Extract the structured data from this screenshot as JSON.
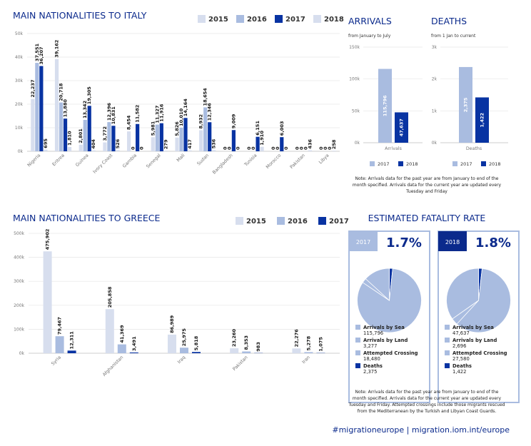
{
  "colors": {
    "y2015": "#d7deee",
    "y2016": "#a9bce0",
    "y2017": "#0833a2",
    "y2018": "#d7deee",
    "title": "#0b2a8c"
  },
  "footer": "#migrationeurope | migration.iom.int/europe",
  "chart_data": [
    {
      "id": "italy",
      "type": "bar",
      "title": "MAIN NATIONALITIES TO ITALY",
      "legend": [
        "2015",
        "2016",
        "2017",
        "2018"
      ],
      "ylim": [
        0,
        50000
      ],
      "yticks": [
        "0k",
        "10k",
        "20k",
        "30k",
        "40k",
        "50k"
      ],
      "categories": [
        "Nigeria",
        "Eritrea",
        "Guinea",
        "Ivory Coast",
        "Gambia",
        "Senegal",
        "Mali",
        "Sudan",
        "Bangladesh",
        "Tunisia",
        "Morocco",
        "Pakistan",
        "Libya"
      ],
      "series": [
        {
          "name": "2015",
          "values": [
            22237,
            39162,
            2801,
            3772,
            8454,
            5981,
            5826,
            8932,
            0,
            0,
            0,
            0,
            0
          ],
          "labels": [
            "22,237",
            "39,162",
            "2,801",
            "3,772",
            "8,454",
            "5,981",
            "5,826",
            "8,932",
            "0",
            "0",
            "0",
            "0",
            "0"
          ]
        },
        {
          "name": "2016",
          "values": [
            37551,
            20718,
            13342,
            12396,
            0,
            11327,
            10010,
            18654,
            0,
            0,
            0,
            0,
            0
          ],
          "labels": [
            "37,551",
            "20,718",
            "13,342",
            "12,396",
            "0",
            "11,327",
            "10,010",
            "18,654",
            "0",
            "0",
            "0",
            "0",
            "0"
          ]
        },
        {
          "name": "2017",
          "values": [
            36207,
            13880,
            19305,
            10831,
            11582,
            11916,
            14164,
            12346,
            9009,
            6151,
            6003,
            0,
            0
          ],
          "labels": [
            "36,207",
            "13,880",
            "19,305",
            "10,831",
            "11,582",
            "11,916",
            "14,164",
            "12,346",
            "9,009",
            "6,151",
            "6,003",
            "0",
            "0"
          ]
        },
        {
          "name": "2018",
          "values": [
            695,
            1810,
            404,
            526,
            0,
            279,
            417,
            536,
            0,
            1910,
            0,
            436,
            258
          ],
          "labels": [
            "695",
            "1,810",
            "404",
            "526",
            "0",
            "279",
            "417",
            "536",
            "0",
            "1,910",
            "0",
            "436",
            "258"
          ]
        }
      ]
    },
    {
      "id": "arrivals",
      "type": "bar",
      "title": "ARRIVALS",
      "subtitle": "from January to July",
      "ylim": [
        0,
        150000
      ],
      "yticks": [
        "0k",
        "50k",
        "100k",
        "150k"
      ],
      "categories": [
        "Arrivals"
      ],
      "legend": [
        "2017",
        "2018"
      ],
      "series": [
        {
          "name": "2017",
          "values": [
            115796
          ],
          "labels": [
            "115,796"
          ]
        },
        {
          "name": "2018",
          "values": [
            47637
          ],
          "labels": [
            "47,637"
          ]
        }
      ]
    },
    {
      "id": "deaths",
      "type": "bar",
      "title": "DEATHS",
      "subtitle": "from 1 Jan to current",
      "ylim": [
        0,
        3000
      ],
      "yticks": [
        "0k",
        "1k",
        "2k",
        "3k"
      ],
      "categories": [
        "Deaths"
      ],
      "legend": [
        "2017",
        "2018"
      ],
      "series": [
        {
          "name": "2017",
          "values": [
            2375
          ],
          "labels": [
            "2,375"
          ]
        },
        {
          "name": "2018",
          "values": [
            1422
          ],
          "labels": [
            "1,422"
          ]
        }
      ]
    },
    {
      "id": "greece",
      "type": "bar",
      "title": "MAIN NATIONALITIES TO GREECE",
      "legend": [
        "2015",
        "2016",
        "2017"
      ],
      "ylim": [
        0,
        560000
      ],
      "yticks": [
        "0k",
        "100k",
        "200k",
        "300k",
        "400k",
        "500k"
      ],
      "categories": [
        "Syria",
        "Afghanistan",
        "Iraq",
        "Pakistan",
        "Iran"
      ],
      "series": [
        {
          "name": "2015",
          "values": [
            475902,
            205858,
            86989,
            23260,
            22276
          ],
          "labels": [
            "475,902",
            "205,858",
            "86,989",
            "23,260",
            "22,276"
          ]
        },
        {
          "name": "2016",
          "values": [
            79467,
            41369,
            25975,
            8353,
            5278
          ],
          "labels": [
            "79,467",
            "41,369",
            "25,975",
            "8,353",
            "5,278"
          ]
        },
        {
          "name": "2017",
          "values": [
            12311,
            3491,
            5818,
            983,
            1075
          ],
          "labels": [
            "12,311",
            "3,491",
            "5,818",
            "983",
            "1,075"
          ]
        }
      ]
    },
    {
      "id": "fatality-2017",
      "type": "pie",
      "year": "2017",
      "rate": "1.7%",
      "slices": [
        {
          "name": "Arrivals by Sea",
          "value": 115796,
          "label": "115,796",
          "color": "#a9bce0"
        },
        {
          "name": "Arrivals by Land",
          "value": 3277,
          "label": "3,277",
          "color": "#a9bce0"
        },
        {
          "name": "Attempted Crossing",
          "value": 18480,
          "label": "18,480",
          "color": "#a9bce0"
        },
        {
          "name": "Deaths",
          "value": 2375,
          "label": "2,375",
          "color": "#0833a2"
        }
      ]
    },
    {
      "id": "fatality-2018",
      "type": "pie",
      "year": "2018",
      "rate": "1.8%",
      "slices": [
        {
          "name": "Arrivals by Sea",
          "value": 47637,
          "label": "47,637",
          "color": "#a9bce0"
        },
        {
          "name": "Arrivals by Land",
          "value": 2696,
          "label": "2,696",
          "color": "#a9bce0"
        },
        {
          "name": "Attempted Crossing",
          "value": 27580,
          "label": "27,580",
          "color": "#a9bce0"
        },
        {
          "name": "Deaths",
          "value": 1422,
          "label": "1,422",
          "color": "#0833a2"
        }
      ]
    }
  ],
  "notes": {
    "arrivals": [
      "Note: Arrivals data for the past year are from January to end of the",
      "month specified. Arrivals data for the current year are updated every",
      "Tuesday and Friday"
    ],
    "fatality_title": "ESTIMATED FATALITY RATE",
    "fatality": [
      "Note: Arrivals data for the past year are from January to end of the",
      "month specified. Arrivals data for the current year are updated every",
      "Tuesday and Friday. Attempted crossings include those migrants rescued",
      "from the Mediterranean by the Turkish and Libyan Coast Guards."
    ]
  }
}
